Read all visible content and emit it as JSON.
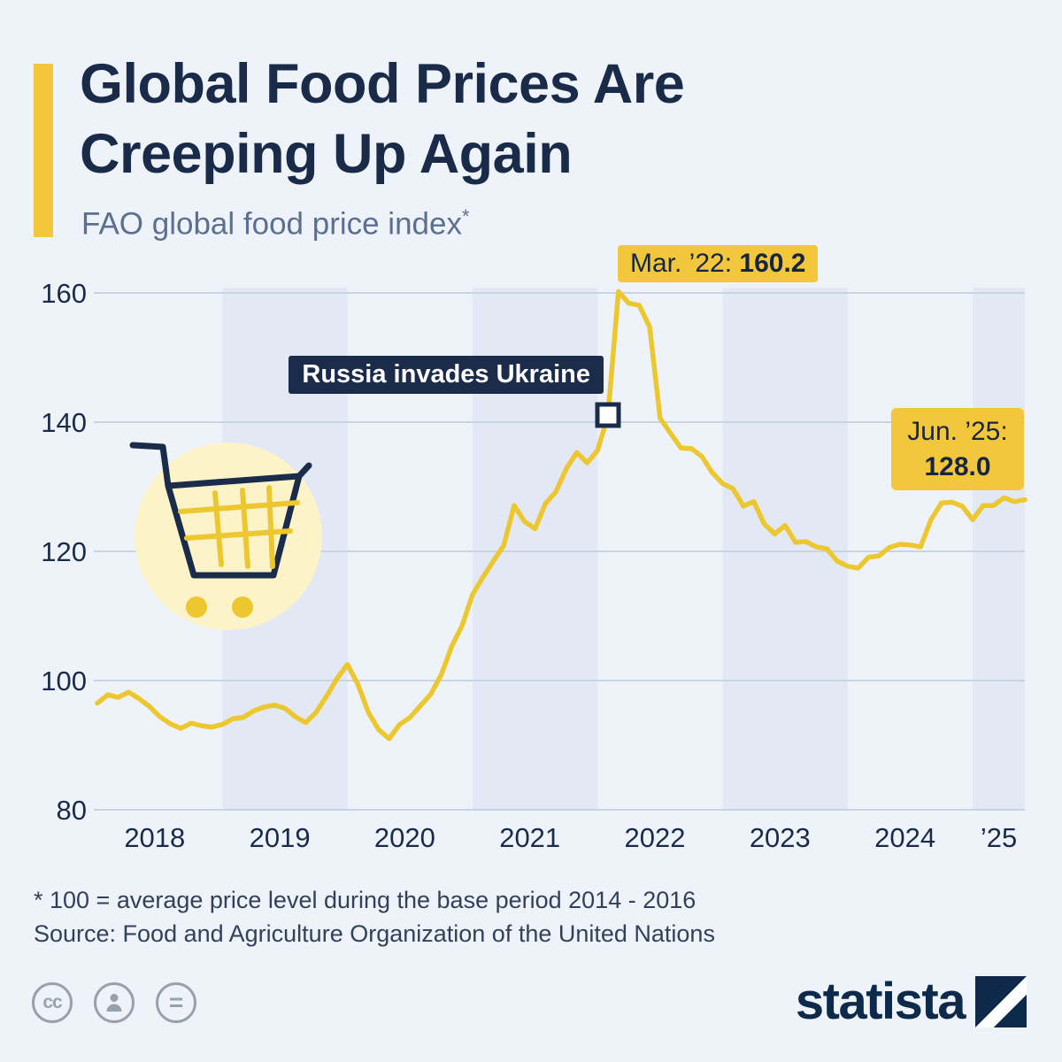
{
  "header": {
    "title_line1": "Global Food Prices Are",
    "title_line2": "Creeping Up Again",
    "subtitle": "FAO global food price index",
    "note_mark": "*"
  },
  "annotations": {
    "peak_label": "Mar. ’22: ",
    "peak_value": "160.2",
    "event_label": "Russia invades Ukraine",
    "latest_label": "Jun. ’25:",
    "latest_value": "128.0"
  },
  "footer": {
    "footnote": "* 100 = average price level during the base period 2014 - 2016",
    "source": "Source: Food and Agriculture Organization of the United Nations",
    "license_cc": "cc",
    "license_equal": "=",
    "brand": "statista"
  },
  "colors": {
    "background": "#eef3fa",
    "band": "#e2e9f4",
    "grid": "#c9d4e3",
    "accent_yellow": "#f2c73b",
    "line_yellow": "#ecc72f",
    "navy": "#1a2b49",
    "subtitle_gray": "#5c6f90",
    "pale_circle": "#fdf3c9",
    "footer_text": "#32405a",
    "icon_gray": "#97a1ac"
  },
  "chart_data": {
    "type": "line",
    "title": "FAO global food price index",
    "xlabel": "",
    "ylabel": "Index (2014-2016 = 100)",
    "x_start": "2018-01",
    "x_interval_months": 1,
    "n_points": 90,
    "x_tick_labels": [
      "2018",
      "2019",
      "2020",
      "2021",
      "2022",
      "2023",
      "2024",
      "’25"
    ],
    "y_ticks": [
      80,
      100,
      120,
      140,
      160
    ],
    "ylim": [
      80,
      160
    ],
    "grid": "horizontal",
    "legend": "none",
    "series": [
      {
        "name": "FAO global food price index",
        "values": [
          96.5,
          97.8,
          97.4,
          98.2,
          97.2,
          96.0,
          94.4,
          93.3,
          92.6,
          93.4,
          93.0,
          92.8,
          93.2,
          94.1,
          94.3,
          95.3,
          95.9,
          96.2,
          95.7,
          94.4,
          93.5,
          95.1,
          97.6,
          100.3,
          102.5,
          99.4,
          95.1,
          92.4,
          91.0,
          93.2,
          94.3,
          96.1,
          97.9,
          100.9,
          105.3,
          108.5,
          113.3,
          116.0,
          118.5,
          120.9,
          127.1,
          124.6,
          123.5,
          127.4,
          129.2,
          132.8,
          135.3,
          133.7,
          135.6,
          141.1,
          160.2,
          158.4,
          158.1,
          154.7,
          140.6,
          138.3,
          136.0,
          135.9,
          134.7,
          132.2,
          130.5,
          129.7,
          127.0,
          127.7,
          124.2,
          122.7,
          124.0,
          121.4,
          121.5,
          120.7,
          120.4,
          118.5,
          117.7,
          117.4,
          119.1,
          119.3,
          120.6,
          121.1,
          121.0,
          120.7,
          124.9,
          127.5,
          127.6,
          127.0,
          124.9,
          127.1,
          127.1,
          128.3,
          127.7,
          128.0
        ]
      }
    ],
    "event_marker": {
      "index": 49,
      "month": "2022-02",
      "value": 141.1,
      "label": "Russia invades Ukraine"
    },
    "annotations": [
      {
        "month": "2022-03",
        "label": "Mar. ’22",
        "value": 160.2
      },
      {
        "month": "2022-02",
        "label": "Russia invades Ukraine",
        "value": 141.1
      },
      {
        "month": "2025-06",
        "label": "Jun. ’25",
        "value": 128.0
      }
    ]
  }
}
